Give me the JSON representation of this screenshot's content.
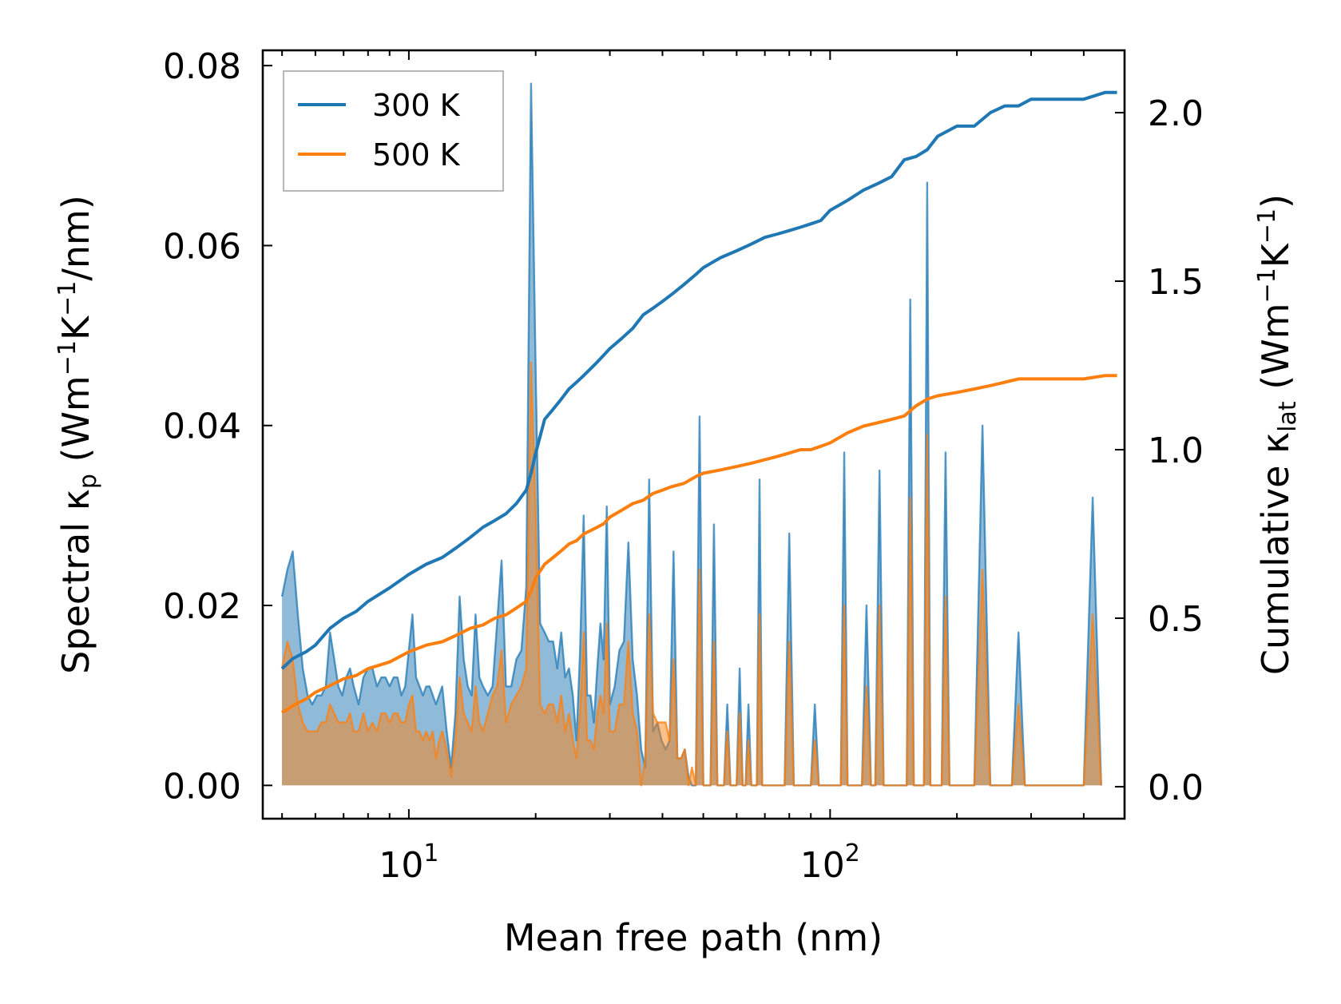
{
  "chart_data": {
    "type": "line",
    "xscale": "log",
    "xlabel": "Mean free path (nm)",
    "ylabel_left": {
      "main": "Spectral κ",
      "sub": "p",
      "unit_a": " (Wm",
      "sup1": "−1",
      "unit_b": "K",
      "sup2": "−1",
      "unit_c": "/nm)"
    },
    "ylabel_right": {
      "main": "Cumulative κ",
      "sub": "lat",
      "unit_a": " (Wm",
      "sup1": "−1",
      "unit_b": "K",
      "sup2": "−1",
      "unit_c": ")"
    },
    "xlim": [
      4.5,
      500
    ],
    "ylim_left": [
      -0.0037,
      0.0817
    ],
    "ylim_right": [
      -0.095,
      2.185
    ],
    "x_ticks": [
      {
        "value": 10,
        "base": "10",
        "exp": "1"
      },
      {
        "value": 100,
        "base": "10",
        "exp": "2"
      }
    ],
    "y_ticks_left": [
      "0.00",
      "0.02",
      "0.04",
      "0.06",
      "0.08"
    ],
    "y_ticks_right": [
      "0.0",
      "0.5",
      "1.0",
      "1.5",
      "2.0"
    ],
    "legend": {
      "position": "top-left",
      "entries": [
        "300 K",
        "500 K"
      ]
    },
    "colors": {
      "s300": "#1f77b4",
      "s500": "#ff7f0e",
      "fill300": "#1f77b4",
      "fill500": "#ff7f0e"
    },
    "spectral": {
      "x": [
        5.0,
        5.15,
        5.3,
        5.45,
        5.6,
        5.75,
        5.9,
        6.05,
        6.2,
        6.35,
        6.5,
        6.65,
        6.8,
        6.95,
        7.1,
        7.25,
        7.4,
        7.6,
        7.8,
        8.0,
        8.2,
        8.4,
        8.6,
        8.8,
        9.0,
        9.2,
        9.4,
        9.6,
        9.8,
        10.0,
        10.2,
        10.4,
        10.6,
        10.8,
        11.0,
        11.2,
        11.4,
        11.6,
        11.8,
        12.0,
        12.3,
        12.6,
        12.9,
        13.2,
        13.5,
        13.8,
        14.1,
        14.4,
        14.7,
        15.0,
        15.4,
        15.8,
        16.2,
        16.6,
        17.0,
        17.5,
        18.0,
        18.5,
        19.0,
        19.5,
        20.0,
        20.5,
        21.0,
        21.5,
        22.0,
        22.5,
        23.0,
        23.5,
        24.0,
        24.5,
        25.0,
        25.5,
        26.0,
        26.5,
        27.0,
        27.5,
        28.0,
        28.5,
        29.0,
        29.5,
        30.0,
        30.8,
        31.6,
        32.4,
        33.2,
        34.0,
        34.8,
        35.6,
        36.4,
        37.2,
        38.0,
        38.9,
        39.8,
        40.7,
        41.6,
        42.5,
        43.4,
        44.3,
        45.2,
        46.1,
        47.0,
        48.0,
        49.0,
        50.0,
        51.0,
        52.0,
        53.0,
        54.0,
        55.0,
        56.0,
        57.0,
        58.0,
        59.0,
        60.0,
        61.0,
        62.0,
        63.0,
        64.0,
        65.0,
        66.0,
        67.0,
        68.0,
        69.0,
        70.0,
        71.0,
        72.0,
        74.0,
        76.0,
        78.0,
        80.0,
        82.0,
        84.0,
        86.0,
        88.0,
        90.0,
        92.0,
        94.0,
        96.0,
        98.0,
        100.0,
        102.0,
        104.0,
        106.0,
        108.0,
        110.0,
        113.0,
        116.0,
        119.0,
        122.0,
        125.0,
        128.0,
        131.0,
        134.0,
        137.0,
        140.0,
        143.0,
        146.0,
        149.0,
        152.0,
        155.0,
        158.0,
        161.0,
        164.0,
        167.0,
        170.0,
        173.0,
        176.0,
        180.0,
        184.0,
        188.0,
        192.0,
        196.0,
        200.0,
        210.0,
        220.0,
        230.0,
        240.0,
        250.0,
        260.0,
        270.0,
        280.0,
        290.0,
        300.0,
        320.0,
        340.0,
        360.0,
        380.0,
        400.0,
        420.0,
        440.0,
        460.0,
        480.0
      ],
      "y300": [
        0.021,
        0.024,
        0.026,
        0.019,
        0.013,
        0.01,
        0.009,
        0.01,
        0.01,
        0.011,
        0.017,
        0.014,
        0.011,
        0.01,
        0.012,
        0.013,
        0.011,
        0.009,
        0.012,
        0.013,
        0.013,
        0.011,
        0.012,
        0.012,
        0.011,
        0.012,
        0.012,
        0.01,
        0.011,
        0.015,
        0.019,
        0.012,
        0.011,
        0.01,
        0.011,
        0.011,
        0.01,
        0.009,
        0.01,
        0.011,
        0.006,
        0.002,
        0.008,
        0.021,
        0.014,
        0.011,
        0.01,
        0.019,
        0.012,
        0.011,
        0.01,
        0.011,
        0.018,
        0.025,
        0.011,
        0.011,
        0.014,
        0.015,
        0.022,
        0.078,
        0.046,
        0.018,
        0.017,
        0.016,
        0.016,
        0.013,
        0.017,
        0.012,
        0.013,
        0.01,
        0.005,
        0.015,
        0.03,
        0.01,
        0.01,
        0.007,
        0.013,
        0.018,
        0.014,
        0.031,
        0.009,
        0.011,
        0.015,
        0.016,
        0.027,
        0.014,
        0.01,
        0.004,
        0.002,
        0.034,
        0.006,
        0.007,
        0.005,
        0.004,
        0.005,
        0.026,
        0.003,
        0.003,
        0.004,
        0.001,
        0.0,
        0.0,
        0.041,
        0.0,
        0.0,
        0.0,
        0.029,
        0.0,
        0.0,
        0.0,
        0.009,
        0.0,
        0.0,
        0.0,
        0.013,
        0.0,
        0.0,
        0.009,
        0.0,
        0.0,
        0.0,
        0.034,
        0.0,
        0.0,
        0.0,
        0.0,
        0.0,
        0.0,
        0.0,
        0.028,
        0.0,
        0.0,
        0.0,
        0.0,
        0.0,
        0.009,
        0.0,
        0.0,
        0.0,
        0.0,
        0.0,
        0.0,
        0.0,
        0.037,
        0.0,
        0.0,
        0.0,
        0.0,
        0.02,
        0.0,
        0.0,
        0.035,
        0.0,
        0.0,
        0.0,
        0.0,
        0.0,
        0.0,
        0.0,
        0.054,
        0.0,
        0.0,
        0.0,
        0.0,
        0.067,
        0.0,
        0.0,
        0.0,
        0.0,
        0.037,
        0.0,
        0.0,
        0.0,
        0.0,
        0.0,
        0.04,
        0.0,
        0.0,
        0.0,
        0.0,
        0.017,
        0.0,
        0.0,
        0.0,
        0.0,
        0.0,
        0.0,
        0.0,
        0.032,
        0.0
      ],
      "y500": [
        0.013,
        0.016,
        0.014,
        0.009,
        0.007,
        0.006,
        0.006,
        0.006,
        0.007,
        0.007,
        0.009,
        0.008,
        0.007,
        0.007,
        0.007,
        0.008,
        0.006,
        0.006,
        0.008,
        0.006,
        0.007,
        0.006,
        0.008,
        0.008,
        0.007,
        0.008,
        0.008,
        0.007,
        0.007,
        0.009,
        0.01,
        0.006,
        0.006,
        0.005,
        0.006,
        0.005,
        0.006,
        0.003,
        0.005,
        0.006,
        0.004,
        0.001,
        0.005,
        0.012,
        0.008,
        0.007,
        0.006,
        0.011,
        0.007,
        0.006,
        0.008,
        0.01,
        0.011,
        0.015,
        0.007,
        0.009,
        0.01,
        0.011,
        0.013,
        0.047,
        0.03,
        0.009,
        0.008,
        0.009,
        0.009,
        0.007,
        0.01,
        0.006,
        0.008,
        0.005,
        0.003,
        0.008,
        0.017,
        0.005,
        0.005,
        0.004,
        0.008,
        0.01,
        0.008,
        0.018,
        0.006,
        0.006,
        0.009,
        0.009,
        0.016,
        0.008,
        0.006,
        0.0,
        0.003,
        0.019,
        0.008,
        0.007,
        0.007,
        0.007,
        0.005,
        0.014,
        0.003,
        0.003,
        0.004,
        0.0,
        0.002,
        0.0,
        0.024,
        0.0,
        0.0,
        0.0,
        0.016,
        0.0,
        0.0,
        0.0,
        0.006,
        0.0,
        0.0,
        0.0,
        0.008,
        0.0,
        0.0,
        0.005,
        0.0,
        0.0,
        0.0,
        0.019,
        0.0,
        0.0,
        0.0,
        0.0,
        0.0,
        0.0,
        0.0,
        0.016,
        0.0,
        0.0,
        0.0,
        0.0,
        0.0,
        0.005,
        0.0,
        0.0,
        0.0,
        0.0,
        0.0,
        0.0,
        0.0,
        0.02,
        0.0,
        0.0,
        0.0,
        0.0,
        0.011,
        0.0,
        0.0,
        0.02,
        0.0,
        0.0,
        0.0,
        0.0,
        0.0,
        0.0,
        0.0,
        0.032,
        0.0,
        0.0,
        0.0,
        0.0,
        0.039,
        0.0,
        0.0,
        0.0,
        0.0,
        0.021,
        0.0,
        0.0,
        0.0,
        0.0,
        0.0,
        0.024,
        0.0,
        0.0,
        0.0,
        0.0,
        0.009,
        0.0,
        0.0,
        0.0,
        0.0,
        0.0,
        0.0,
        0.0,
        0.019,
        0.0
      ]
    },
    "cumulative": {
      "x": [
        5.0,
        5.3,
        5.7,
        6.0,
        6.5,
        7.0,
        7.5,
        8.0,
        9.0,
        10.0,
        11.0,
        12.0,
        13.0,
        14.0,
        15.0,
        16.0,
        17.0,
        18.0,
        19.0,
        19.5,
        20.0,
        21.0,
        22.0,
        23.0,
        24.0,
        25.0,
        26.0,
        27.0,
        28.0,
        29.0,
        30.0,
        32.0,
        34.0,
        36.0,
        38.0,
        40.0,
        42.0,
        45.0,
        48.0,
        50.0,
        55.0,
        60.0,
        65.0,
        70.0,
        75.0,
        80.0,
        85.0,
        90.0,
        95.0,
        100.0,
        110.0,
        120.0,
        130.0,
        140.0,
        150.0,
        160.0,
        170.0,
        180.0,
        200.0,
        220.0,
        240.0,
        260.0,
        280.0,
        300.0,
        350.0,
        400.0,
        450.0,
        480.0
      ],
      "y300": [
        0.35,
        0.38,
        0.4,
        0.42,
        0.47,
        0.5,
        0.52,
        0.55,
        0.59,
        0.63,
        0.66,
        0.68,
        0.71,
        0.74,
        0.77,
        0.79,
        0.81,
        0.84,
        0.88,
        0.93,
        0.99,
        1.09,
        1.12,
        1.15,
        1.18,
        1.2,
        1.22,
        1.24,
        1.26,
        1.28,
        1.3,
        1.33,
        1.36,
        1.4,
        1.42,
        1.44,
        1.46,
        1.49,
        1.52,
        1.54,
        1.57,
        1.59,
        1.61,
        1.63,
        1.64,
        1.65,
        1.66,
        1.67,
        1.68,
        1.71,
        1.74,
        1.77,
        1.79,
        1.81,
        1.86,
        1.87,
        1.89,
        1.93,
        1.96,
        1.96,
        2.0,
        2.02,
        2.02,
        2.04,
        2.04,
        2.04,
        2.06,
        2.06
      ],
      "y500": [
        0.22,
        0.24,
        0.26,
        0.28,
        0.3,
        0.32,
        0.33,
        0.35,
        0.37,
        0.4,
        0.42,
        0.43,
        0.45,
        0.47,
        0.48,
        0.5,
        0.51,
        0.53,
        0.55,
        0.58,
        0.62,
        0.66,
        0.68,
        0.7,
        0.72,
        0.73,
        0.75,
        0.76,
        0.77,
        0.78,
        0.8,
        0.82,
        0.84,
        0.85,
        0.87,
        0.88,
        0.89,
        0.9,
        0.92,
        0.93,
        0.94,
        0.95,
        0.96,
        0.97,
        0.98,
        0.99,
        1.0,
        1.0,
        1.01,
        1.02,
        1.05,
        1.07,
        1.08,
        1.09,
        1.1,
        1.13,
        1.15,
        1.16,
        1.17,
        1.18,
        1.19,
        1.2,
        1.21,
        1.21,
        1.21,
        1.21,
        1.22,
        1.22
      ]
    }
  }
}
